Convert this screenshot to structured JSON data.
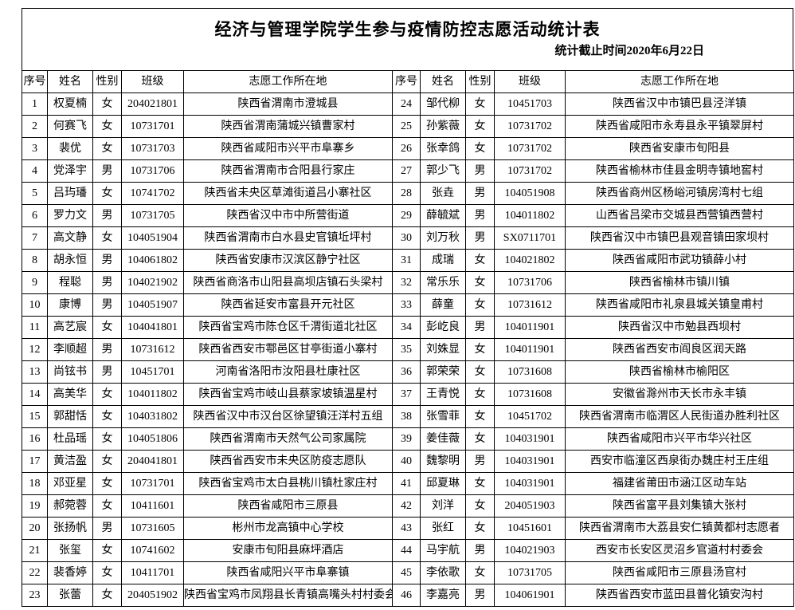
{
  "header": {
    "title": "经济与管理学院学生参与疫情防控志愿活动统计表",
    "subtitle": "统计截止时间2020年6月22日"
  },
  "table": {
    "columns": [
      "序号",
      "姓名",
      "性别",
      "班级",
      "志愿工作所在地"
    ],
    "left_rows": [
      [
        "1",
        "权夏楠",
        "女",
        "204021801",
        "陕西省渭南市澄城县"
      ],
      [
        "2",
        "何赛飞",
        "女",
        "10731701",
        "陕西省渭南蒲城兴镇曹家村"
      ],
      [
        "3",
        "裴优",
        "女",
        "10731703",
        "陕西省咸阳市兴平市阜寨乡"
      ],
      [
        "4",
        "党泽宇",
        "男",
        "10731706",
        "陕西省渭南市合阳县行家庄"
      ],
      [
        "5",
        "吕玙璠",
        "女",
        "10741702",
        "陕西省未央区草滩街道吕小寨社区"
      ],
      [
        "6",
        "罗力文",
        "男",
        "10731705",
        "陕西省汉中市中所营街道"
      ],
      [
        "7",
        "高文静",
        "女",
        "104051904",
        "陕西省渭南市白水县史官镇坵坪村"
      ],
      [
        "8",
        "胡永恒",
        "男",
        "104061802",
        "陕西省安康市汉滨区静宁社区"
      ],
      [
        "9",
        "程聪",
        "男",
        "104021902",
        "陕西省商洛市山阳县高坝店镇石头梁村"
      ],
      [
        "10",
        "康博",
        "男",
        "104051907",
        "陕西省延安市富县开元社区"
      ],
      [
        "11",
        "高艺宸",
        "女",
        "104041801",
        "陕西省宝鸡市陈仓区千渭街道北社区"
      ],
      [
        "12",
        "李顺超",
        "男",
        "10731612",
        "陕西省西安市鄠邑区甘亭街道小寨村"
      ],
      [
        "13",
        "尚铉书",
        "男",
        "10451701",
        "河南省洛阳市汝阳县杜康社区"
      ],
      [
        "14",
        "高美华",
        "女",
        "104011802",
        "陕西省宝鸡市岐山县蔡家坡镇温星村"
      ],
      [
        "15",
        "郭甜恬",
        "女",
        "104031802",
        "陕西省汉中市汉台区徐望镇汪洋村五组"
      ],
      [
        "16",
        "杜品瑶",
        "女",
        "104051806",
        "陕西省渭南市天然气公司家属院"
      ],
      [
        "17",
        "黄洁盈",
        "女",
        "204041801",
        "陕西省西安市未央区防疫志愿队"
      ],
      [
        "18",
        "邓亚星",
        "女",
        "10731701",
        "陕西省宝鸡市太白县桃川镇杜家庄村"
      ],
      [
        "19",
        "郝菀蓉",
        "女",
        "10411601",
        "陕西省咸阳市三原县"
      ],
      [
        "20",
        "张扬帆",
        "男",
        "10731605",
        "彬州市龙高镇中心学校"
      ],
      [
        "21",
        "张玺",
        "女",
        "10741602",
        "安康市旬阳县麻坪酒店"
      ],
      [
        "22",
        "裴香婷",
        "女",
        "10411701",
        "陕西省咸阳兴平市阜寨镇"
      ],
      [
        "23",
        "张蕾",
        "女",
        "204051902",
        "陕西省宝鸡市凤翔县长青镇高嘴头村村委会"
      ]
    ],
    "right_rows": [
      [
        "24",
        "邹代柳",
        "女",
        "10451703",
        "陕西省汉中市镇巴县泾洋镇"
      ],
      [
        "25",
        "孙紫薇",
        "女",
        "10731702",
        "陕西省咸阳市永寿县永平镇翠屏村"
      ],
      [
        "26",
        "张幸鸽",
        "女",
        "10731702",
        "陕西省安康市旬阳县"
      ],
      [
        "27",
        "郭少飞",
        "男",
        "10731702",
        "陕西省榆林市佳县金明寺镇地窖村"
      ],
      [
        "28",
        "张垚",
        "男",
        "104051908",
        "陕西省商州区杨峪河镇房湾村七组"
      ],
      [
        "29",
        "薛毓斌",
        "男",
        "104011802",
        "山西省吕梁市交城县西营镇西营村"
      ],
      [
        "30",
        "刘万秋",
        "男",
        "SX0711701",
        "陕西省汉中市镇巴县观音镇田家坝村"
      ],
      [
        "31",
        "成瑞",
        "女",
        "104021802",
        "陕西省咸阳市武功镇薛小村"
      ],
      [
        "32",
        "常乐乐",
        "女",
        "10731706",
        "陕西省榆林市镇川镇"
      ],
      [
        "33",
        "薛童",
        "女",
        "10731612",
        "陕西省咸阳市礼泉县城关镇皇甫村"
      ],
      [
        "34",
        "彭屹良",
        "男",
        "104011901",
        "陕西省汉中市勉县西坝村"
      ],
      [
        "35",
        "刘姝显",
        "女",
        "104011901",
        "陕西省西安市阎良区润天路"
      ],
      [
        "36",
        "郭荣荣",
        "女",
        "10731608",
        "陕西省榆林市榆阳区"
      ],
      [
        "37",
        "王青悦",
        "女",
        "10731608",
        "安徽省滁州市天长市永丰镇"
      ],
      [
        "38",
        "张雪菲",
        "女",
        "10451702",
        "陕西省渭南市临渭区人民街道办胜利社区"
      ],
      [
        "39",
        "姜佳薇",
        "女",
        "104031901",
        "陕西省咸阳市兴平市华兴社区"
      ],
      [
        "40",
        "魏黎明",
        "男",
        "104031901",
        "西安市临潼区西泉街办魏庄村王庄组"
      ],
      [
        "41",
        "邱夏琳",
        "女",
        "104031901",
        "福建省莆田市涵江区动车站"
      ],
      [
        "42",
        "刘洋",
        "女",
        "204051903",
        "陕西省富平县刘集镇大张村"
      ],
      [
        "43",
        "张红",
        "女",
        "10451601",
        "陕西省渭南市大荔县安仁镇黄都村志愿者"
      ],
      [
        "44",
        "马宇航",
        "男",
        "104021903",
        "西安市长安区灵沼乡官道村村委会"
      ],
      [
        "45",
        "李依歌",
        "女",
        "10731705",
        "陕西省咸阳市三原县汤官村"
      ],
      [
        "46",
        "李嘉亮",
        "男",
        "104061901",
        "陕西省西安市蓝田县普化镇安沟村"
      ]
    ]
  }
}
